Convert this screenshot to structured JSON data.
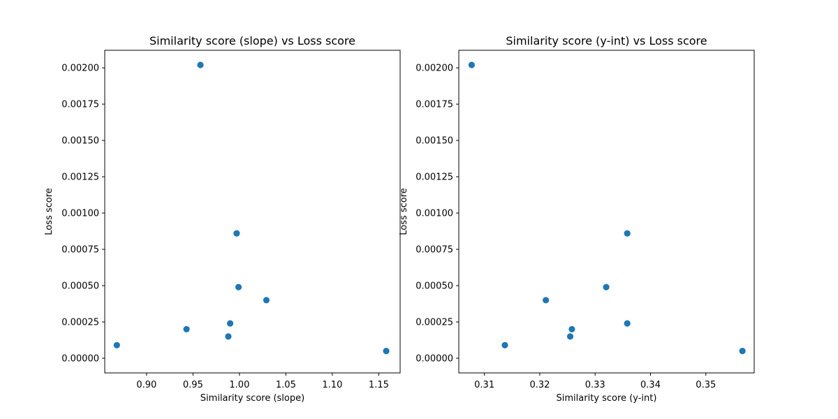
{
  "colors": {
    "marker": "#1f77b4",
    "axes": "#000000",
    "background": "#ffffff"
  },
  "chart_data": [
    {
      "type": "scatter",
      "title": "Similarity score (slope) vs Loss score",
      "xlabel": "Similarity score (slope)",
      "ylabel": "Loss score",
      "xlim": [
        0.855,
        1.173
      ],
      "ylim": [
        -0.000101,
        0.002121
      ],
      "xticks": [
        0.9,
        0.95,
        1.0,
        1.05,
        1.1,
        1.15
      ],
      "xtick_labels": [
        "0.90",
        "0.95",
        "1.00",
        "1.05",
        "1.10",
        "1.15"
      ],
      "yticks": [
        0,
        0.00025,
        0.0005,
        0.00075,
        0.001,
        0.00125,
        0.0015,
        0.00175,
        0.002
      ],
      "ytick_labels": [
        "0.00000",
        "0.00025",
        "0.00050",
        "0.00075",
        "0.00100",
        "0.00125",
        "0.00150",
        "0.00175",
        "0.00200"
      ],
      "grid": false,
      "points": [
        {
          "x": 0.958,
          "y": 0.00202
        },
        {
          "x": 0.997,
          "y": 0.00086
        },
        {
          "x": 0.999,
          "y": 0.00049
        },
        {
          "x": 1.029,
          "y": 0.0004
        },
        {
          "x": 0.99,
          "y": 0.00024
        },
        {
          "x": 0.943,
          "y": 0.0002
        },
        {
          "x": 0.988,
          "y": 0.00015
        },
        {
          "x": 0.868,
          "y": 9e-05
        },
        {
          "x": 1.158,
          "y": 5e-05
        }
      ]
    },
    {
      "type": "scatter",
      "title": "Similarity score (y-int) vs Loss score",
      "xlabel": "Similarity score (y-int)",
      "ylabel": "Loss score",
      "xlim": [
        0.30538,
        0.35873
      ],
      "ylim": [
        -0.000101,
        0.002121
      ],
      "xticks": [
        0.31,
        0.32,
        0.33,
        0.34,
        0.35
      ],
      "xtick_labels": [
        "0.31",
        "0.32",
        "0.33",
        "0.34",
        "0.35"
      ],
      "yticks": [
        0,
        0.00025,
        0.0005,
        0.00075,
        0.001,
        0.00125,
        0.0015,
        0.00175,
        0.002
      ],
      "ytick_labels": [
        "0.00000",
        "0.00025",
        "0.00050",
        "0.00075",
        "0.00100",
        "0.00125",
        "0.00150",
        "0.00175",
        "0.00200"
      ],
      "grid": false,
      "points": [
        {
          "x": 0.3077,
          "y": 0.00202
        },
        {
          "x": 0.3358,
          "y": 0.00086
        },
        {
          "x": 0.332,
          "y": 0.00049
        },
        {
          "x": 0.3211,
          "y": 0.0004
        },
        {
          "x": 0.3358,
          "y": 0.00024
        },
        {
          "x": 0.3258,
          "y": 0.0002
        },
        {
          "x": 0.3255,
          "y": 0.00015
        },
        {
          "x": 0.3137,
          "y": 9e-05
        },
        {
          "x": 0.3566,
          "y": 5e-05
        }
      ]
    }
  ]
}
